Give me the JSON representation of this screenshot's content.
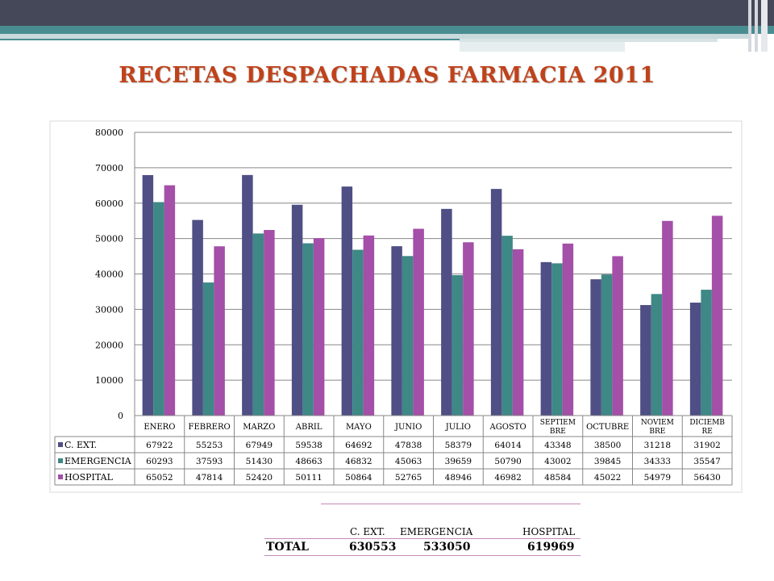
{
  "title": "RECETAS DESPACHADAS FARMACIA 2011",
  "colors": {
    "c_ext": "#4f4f86",
    "emergencia": "#3e8886",
    "hospital": "#a44fa8",
    "title": "#c0421a"
  },
  "chart_data": {
    "type": "bar",
    "categories": [
      "ENERO",
      "FEBRERO",
      "MARZO",
      "ABRIL",
      "MAYO",
      "JUNIO",
      "JULIO",
      "AGOSTO",
      [
        "SEPTIEM",
        "BRE"
      ],
      "OCTUBRE",
      [
        "NOVIEM",
        "BRE"
      ],
      [
        "DICIEMB",
        "RE"
      ]
    ],
    "series": [
      {
        "name": "C. EXT.",
        "values": [
          67922,
          55253,
          67949,
          59538,
          64692,
          47838,
          58379,
          64014,
          43348,
          38500,
          31218,
          31902
        ]
      },
      {
        "name": "EMERGENCIA",
        "values": [
          60293,
          37593,
          51430,
          48663,
          46832,
          45063,
          39659,
          50790,
          43002,
          39845,
          34333,
          35547
        ]
      },
      {
        "name": "HOSPITAL",
        "values": [
          65052,
          47814,
          52420,
          50111,
          50864,
          52765,
          48946,
          46982,
          48584,
          45022,
          54979,
          56430
        ]
      }
    ],
    "ylim": [
      0,
      80000
    ],
    "yticks": [
      0,
      10000,
      20000,
      30000,
      40000,
      50000,
      60000,
      70000,
      80000
    ],
    "grid": true,
    "legend": "data-table"
  },
  "totals": {
    "headers": [
      "C. EXT.",
      "EMERGENCIA",
      "HOSPITAL"
    ],
    "label": "TOTAL",
    "values": [
      "630553",
      "533050",
      "619969"
    ]
  }
}
